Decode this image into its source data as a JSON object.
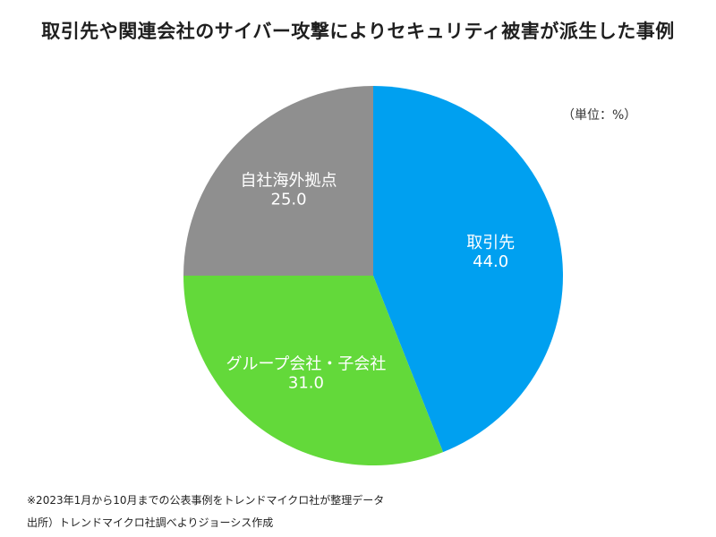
{
  "chart_data": {
    "type": "pie",
    "title": "取引先や関連会社のサイバー攻撃によりセキュリティ被害が派生した事例",
    "unit": "（単位：%）",
    "categories": [
      "取引先",
      "グループ会社・子会社",
      "自社海外拠点"
    ],
    "values": [
      44.0,
      31.0,
      25.0
    ],
    "value_labels": [
      "44.0",
      "31.0",
      "25.0"
    ],
    "colors": [
      "#00a0f0",
      "#63d93a",
      "#8f8f8f"
    ],
    "start": "12 o'clock",
    "direction": "clockwise",
    "legend": "none",
    "labels_inside": true
  },
  "notes": [
    "※2023年1月から10月までの公表事例をトレンドマイクロ社が整理データ",
    "出所）トレンドマイクロ社調べよりジョーシス作成"
  ]
}
